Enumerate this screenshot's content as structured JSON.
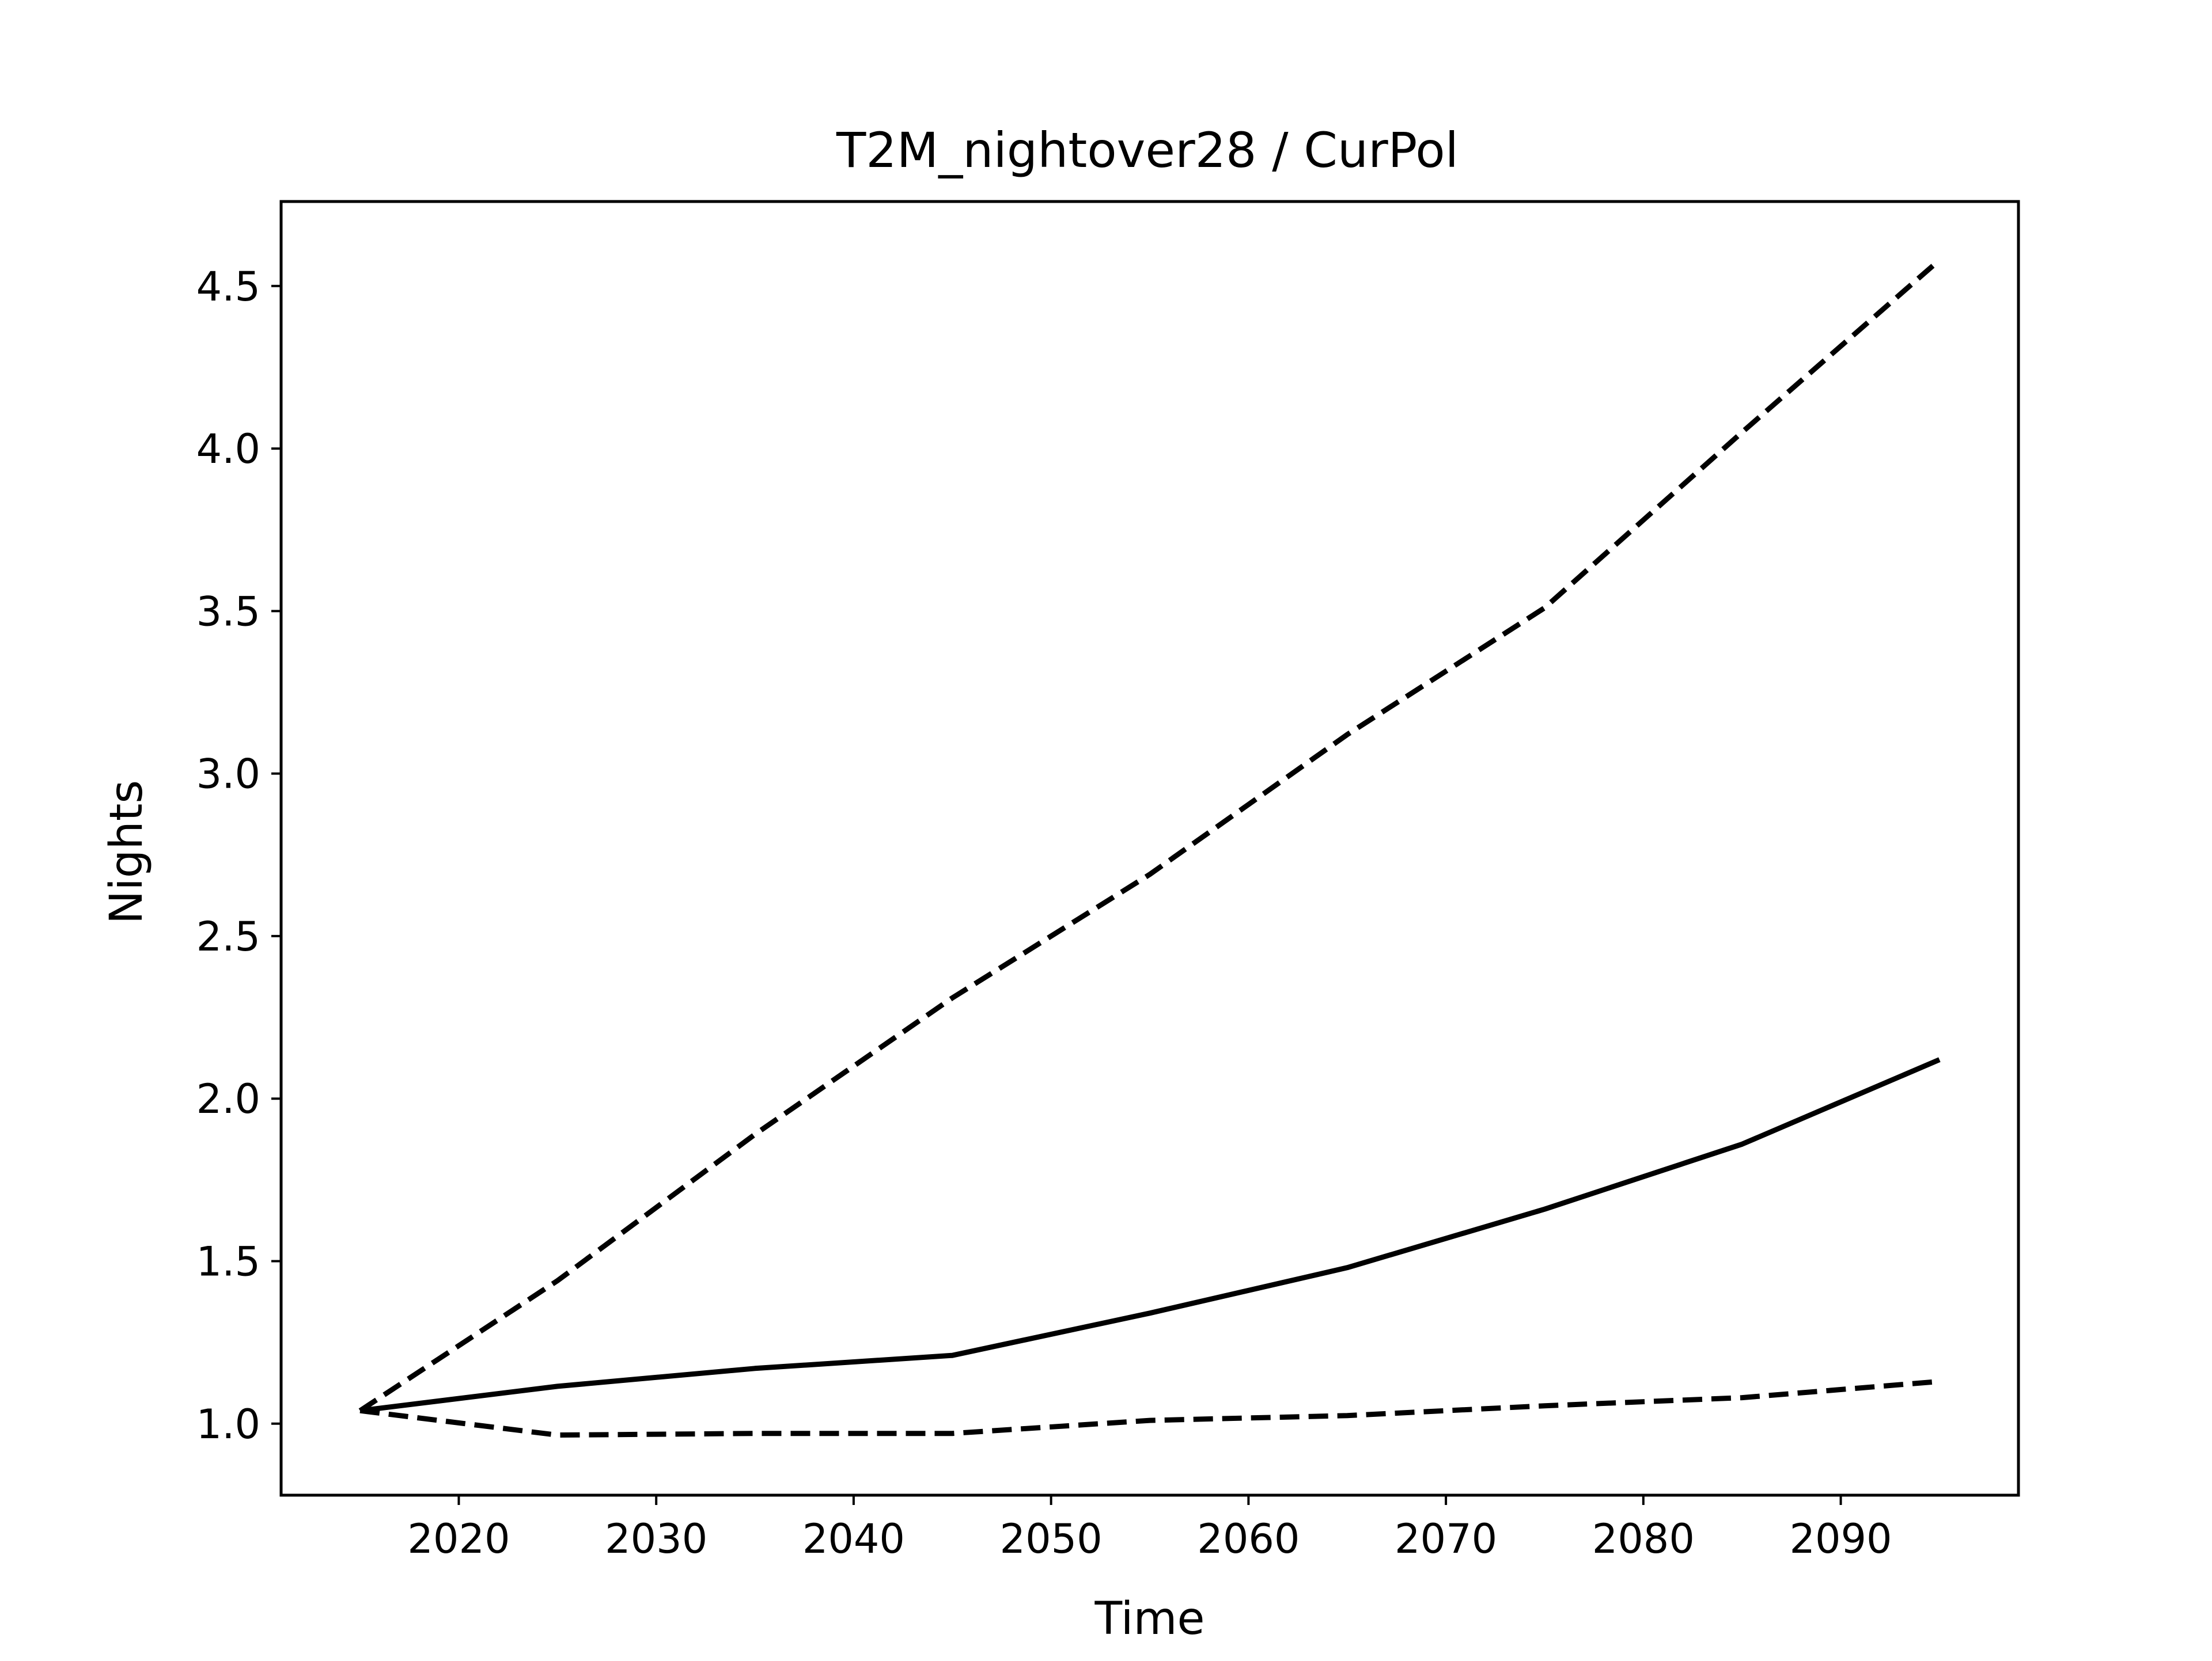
{
  "chart_data": {
    "type": "line",
    "title": "T2M_nightover28 / CurPol",
    "xlabel": "Time",
    "ylabel": "Nights",
    "xlim": [
      2011,
      2099
    ],
    "ylim": [
      0.78,
      4.76
    ],
    "x_ticks": [
      2020,
      2030,
      2040,
      2050,
      2060,
      2070,
      2080,
      2090
    ],
    "y_ticks": [
      1.0,
      1.5,
      2.0,
      2.5,
      3.0,
      3.5,
      4.0,
      4.5
    ],
    "grid": false,
    "legend": false,
    "x": [
      2015,
      2025,
      2035,
      2045,
      2055,
      2065,
      2075,
      2085,
      2095
    ],
    "series": [
      {
        "style": "solid",
        "color": "#000000",
        "values": [
          1.04,
          1.115,
          1.17,
          1.21,
          1.34,
          1.48,
          1.66,
          1.86,
          2.12
        ]
      },
      {
        "style": "dashed",
        "color": "#000000",
        "values": [
          1.04,
          1.44,
          1.89,
          2.31,
          2.69,
          3.12,
          3.51,
          4.05,
          4.58
        ]
      },
      {
        "style": "dashed",
        "color": "#000000",
        "values": [
          1.04,
          0.965,
          0.97,
          0.97,
          1.01,
          1.025,
          1.055,
          1.08,
          1.13
        ]
      }
    ]
  }
}
